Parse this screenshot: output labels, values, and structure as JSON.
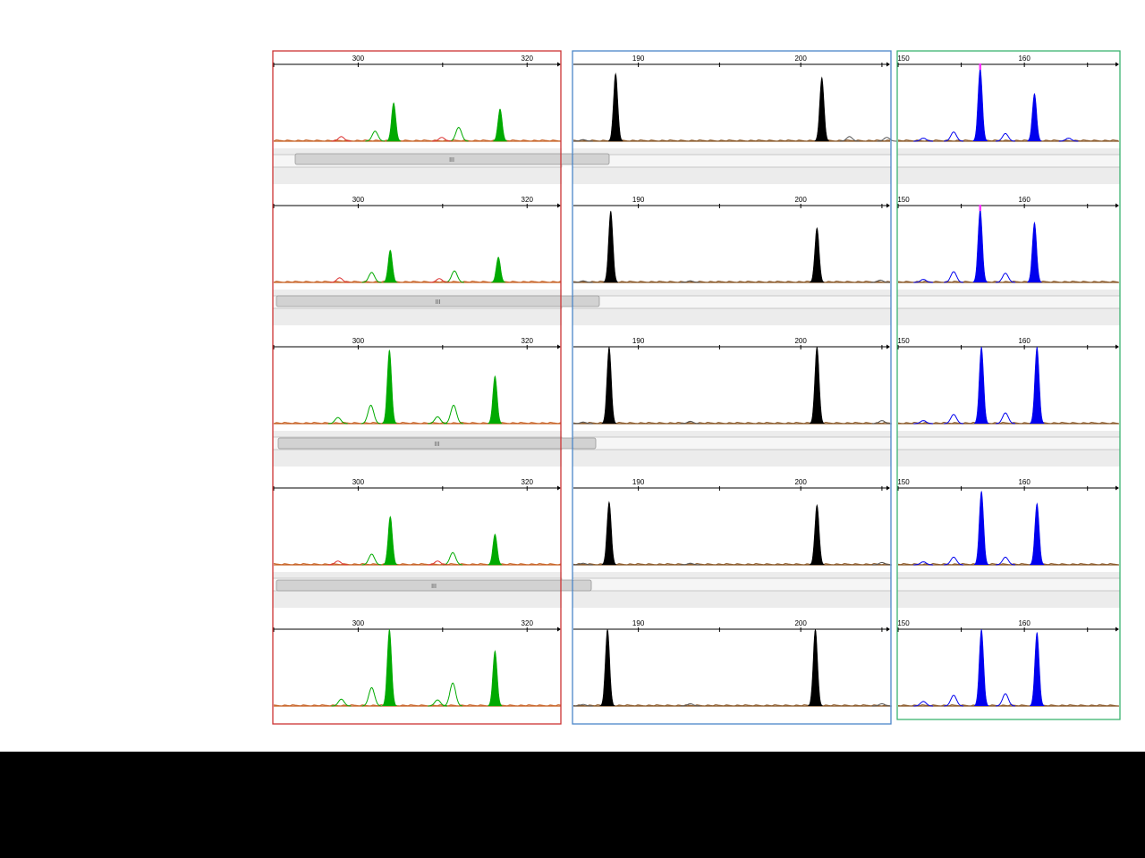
{
  "colors": {
    "page_background": "#ffffff",
    "footer_band": "#000000",
    "primary_peak_colors": [
      "#00aa00",
      "#000000",
      "#0000ee"
    ],
    "frame_colors": [
      "#cc3333",
      "#4a86c8",
      "#3cb371"
    ],
    "baseline_colors": [
      "#c86428",
      "#8b5a2b",
      "#8b5a2b"
    ],
    "secondary_trace_colors": [
      "#00aa00",
      "#555555",
      "#0000ee"
    ],
    "marker_color": "#ff33ff",
    "scrollbar_track": "#ececec",
    "scrollbar_thumb": "#d2d2d2"
  },
  "icons": {
    "scroll_grip": "scroll-grip-icon"
  },
  "scroll_grip_label": "III",
  "chart_data": [
    {
      "type": "line",
      "panel": "left",
      "x_ticks": [
        300,
        320
      ],
      "x_tick_labels": [
        "300",
        "320"
      ],
      "xlim": [
        290,
        324
      ],
      "ylim": [
        0,
        1
      ],
      "grid": false,
      "series": [
        {
          "style": "filled",
          "rows": [
            {
              "peaks": [
                {
                  "x": 304.2,
                  "height": 0.5
                },
                {
                  "x": 316.8,
                  "height": 0.42
                }
              ]
            },
            {
              "peaks": [
                {
                  "x": 303.8,
                  "height": 0.42
                },
                {
                  "x": 316.6,
                  "height": 0.33
                }
              ]
            },
            {
              "peaks": [
                {
                  "x": 303.7,
                  "height": 0.96
                },
                {
                  "x": 316.2,
                  "height": 0.62
                }
              ]
            },
            {
              "peaks": [
                {
                  "x": 303.8,
                  "height": 0.63
                },
                {
                  "x": 316.2,
                  "height": 0.4
                }
              ]
            },
            {
              "peaks": [
                {
                  "x": 303.7,
                  "height": 1.0
                },
                {
                  "x": 316.2,
                  "height": 0.72
                }
              ]
            }
          ]
        },
        {
          "style": "outline",
          "rows": [
            {
              "peaks": [
                {
                  "x": 302.0,
                  "height": 0.13
                },
                {
                  "x": 311.9,
                  "height": 0.18
                },
                {
                  "x": 309.9,
                  "height": 0.05
                },
                {
                  "x": 298.0,
                  "height": 0.06
                }
              ]
            },
            {
              "peaks": [
                {
                  "x": 301.6,
                  "height": 0.13
                },
                {
                  "x": 311.4,
                  "height": 0.15
                },
                {
                  "x": 309.6,
                  "height": 0.05
                },
                {
                  "x": 297.8,
                  "height": 0.06
                }
              ]
            },
            {
              "peaks": [
                {
                  "x": 301.5,
                  "height": 0.24
                },
                {
                  "x": 311.3,
                  "height": 0.24
                },
                {
                  "x": 309.4,
                  "height": 0.09
                },
                {
                  "x": 297.6,
                  "height": 0.08
                }
              ]
            },
            {
              "peaks": [
                {
                  "x": 301.6,
                  "height": 0.14
                },
                {
                  "x": 311.2,
                  "height": 0.16
                },
                {
                  "x": 309.4,
                  "height": 0.05
                },
                {
                  "x": 297.6,
                  "height": 0.05
                }
              ]
            },
            {
              "peaks": [
                {
                  "x": 301.6,
                  "height": 0.24
                },
                {
                  "x": 311.2,
                  "height": 0.3
                },
                {
                  "x": 309.4,
                  "height": 0.08
                },
                {
                  "x": 298.0,
                  "height": 0.09
                }
              ]
            }
          ]
        }
      ]
    },
    {
      "type": "line",
      "panel": "middle",
      "x_ticks": [
        190,
        200
      ],
      "x_tick_labels": [
        "190",
        "200"
      ],
      "xlim": [
        186,
        205.5
      ],
      "ylim": [
        0,
        1
      ],
      "grid": false,
      "series": [
        {
          "style": "filled",
          "rows": [
            {
              "peaks": [
                {
                  "x": 188.6,
                  "height": 0.88
                },
                {
                  "x": 201.3,
                  "height": 0.83
                }
              ]
            },
            {
              "peaks": [
                {
                  "x": 188.3,
                  "height": 0.93
                },
                {
                  "x": 201.0,
                  "height": 0.71
                }
              ]
            },
            {
              "peaks": [
                {
                  "x": 188.2,
                  "height": 1.0
                },
                {
                  "x": 201.0,
                  "height": 1.0
                }
              ]
            },
            {
              "peaks": [
                {
                  "x": 188.2,
                  "height": 0.82
                },
                {
                  "x": 201.0,
                  "height": 0.78
                }
              ]
            },
            {
              "peaks": [
                {
                  "x": 188.1,
                  "height": 1.0
                },
                {
                  "x": 200.9,
                  "height": 1.0
                }
              ]
            }
          ]
        },
        {
          "style": "outline",
          "rows": [
            {
              "peaks": [
                {
                  "x": 203.0,
                  "height": 0.06
                },
                {
                  "x": 205.3,
                  "height": 0.05
                },
                {
                  "x": 186.6,
                  "height": 0.02
                }
              ]
            },
            {
              "peaks": [
                {
                  "x": 193.2,
                  "height": 0.02
                },
                {
                  "x": 204.9,
                  "height": 0.03
                },
                {
                  "x": 186.6,
                  "height": 0.02
                }
              ]
            },
            {
              "peaks": [
                {
                  "x": 193.2,
                  "height": 0.03
                },
                {
                  "x": 205.0,
                  "height": 0.04
                },
                {
                  "x": 186.6,
                  "height": 0.02
                }
              ]
            },
            {
              "peaks": [
                {
                  "x": 193.2,
                  "height": 0.02
                },
                {
                  "x": 205.0,
                  "height": 0.03
                },
                {
                  "x": 186.6,
                  "height": 0.02
                }
              ]
            },
            {
              "peaks": [
                {
                  "x": 193.2,
                  "height": 0.03
                },
                {
                  "x": 205.0,
                  "height": 0.03
                },
                {
                  "x": 186.6,
                  "height": 0.02
                }
              ]
            }
          ]
        }
      ]
    },
    {
      "type": "line",
      "panel": "right",
      "x_ticks": [
        150,
        160
      ],
      "x_tick_labels": [
        "150",
        "160"
      ],
      "xlim": [
        150,
        167.5
      ],
      "ylim": [
        0,
        1
      ],
      "grid": false,
      "series": [
        {
          "style": "filled",
          "rows": [
            {
              "peaks": [
                {
                  "x": 156.5,
                  "height": 0.95
                },
                {
                  "x": 160.8,
                  "height": 0.62
                }
              ],
              "marker_x": 156.5
            },
            {
              "peaks": [
                {
                  "x": 156.5,
                  "height": 0.95
                },
                {
                  "x": 160.8,
                  "height": 0.78
                }
              ],
              "marker_x": 156.5
            },
            {
              "peaks": [
                {
                  "x": 156.6,
                  "height": 1.0
                },
                {
                  "x": 161.0,
                  "height": 1.0
                }
              ]
            },
            {
              "peaks": [
                {
                  "x": 156.6,
                  "height": 0.96
                },
                {
                  "x": 161.0,
                  "height": 0.8
                }
              ]
            },
            {
              "peaks": [
                {
                  "x": 156.6,
                  "height": 1.0
                },
                {
                  "x": 161.0,
                  "height": 0.96
                }
              ]
            }
          ]
        },
        {
          "style": "outline",
          "rows": [
            {
              "peaks": [
                {
                  "x": 154.4,
                  "height": 0.12
                },
                {
                  "x": 158.5,
                  "height": 0.1
                },
                {
                  "x": 152.0,
                  "height": 0.04
                },
                {
                  "x": 163.5,
                  "height": 0.04
                }
              ]
            },
            {
              "peaks": [
                {
                  "x": 154.4,
                  "height": 0.14
                },
                {
                  "x": 158.5,
                  "height": 0.12
                },
                {
                  "x": 152.0,
                  "height": 0.04
                }
              ]
            },
            {
              "peaks": [
                {
                  "x": 154.4,
                  "height": 0.12
                },
                {
                  "x": 158.5,
                  "height": 0.14
                },
                {
                  "x": 152.0,
                  "height": 0.04
                }
              ]
            },
            {
              "peaks": [
                {
                  "x": 154.4,
                  "height": 0.1
                },
                {
                  "x": 158.5,
                  "height": 0.1
                },
                {
                  "x": 152.0,
                  "height": 0.04
                }
              ]
            },
            {
              "peaks": [
                {
                  "x": 154.4,
                  "height": 0.14
                },
                {
                  "x": 158.5,
                  "height": 0.16
                },
                {
                  "x": 152.0,
                  "height": 0.06
                }
              ]
            }
          ]
        }
      ]
    }
  ]
}
